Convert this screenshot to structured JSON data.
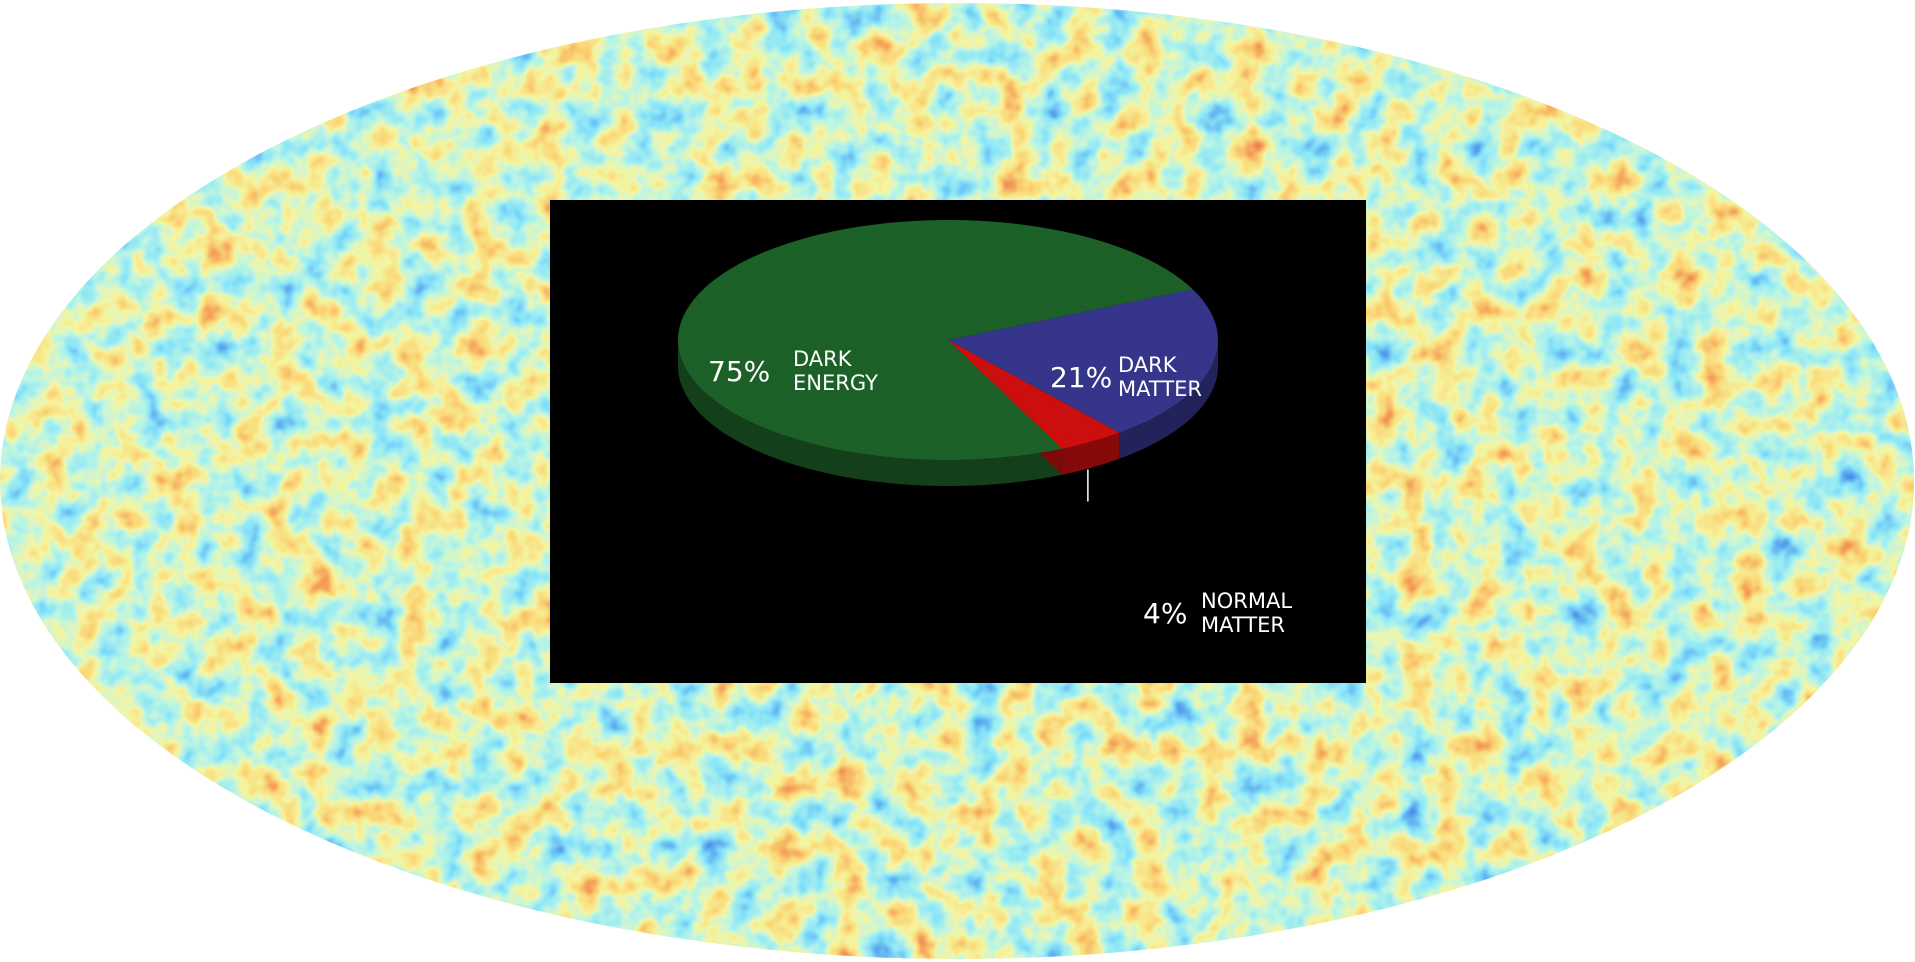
{
  "background": {
    "subject": "cmb-all-sky-map",
    "colors": [
      "#0a1fb0",
      "#1f6fe0",
      "#3fc8f0",
      "#7be8c8",
      "#e8e85a",
      "#f5b030",
      "#e85a1a",
      "#b81010"
    ]
  },
  "chart_data": {
    "type": "pie",
    "title": "",
    "slices": [
      {
        "label_line1": "DARK",
        "label_line2": "ENERGY",
        "value_text": "75%",
        "value": 75,
        "color": "#1f6a2c"
      },
      {
        "label_line1": "DARK",
        "label_line2": "MATTER",
        "value_text": "21%",
        "value": 21,
        "color": "#3a3a98"
      },
      {
        "label_line1": "NORMAL",
        "label_line2": "MATTER",
        "value_text": "4%",
        "value": 4,
        "color": "#e01010"
      }
    ],
    "background_color": "#000000"
  }
}
